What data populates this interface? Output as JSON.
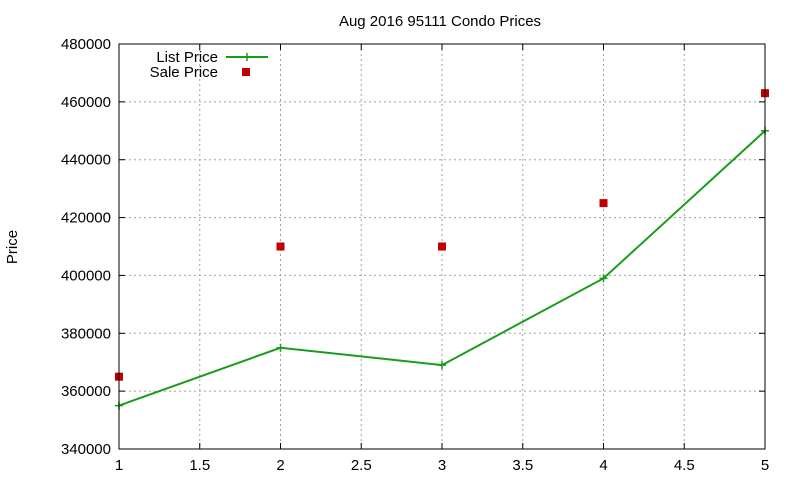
{
  "chart_data": {
    "type": "line",
    "title": "Aug 2016 95111 Condo Prices",
    "xlabel": "",
    "ylabel": "Price",
    "xlim": [
      1,
      5
    ],
    "ylim": [
      340000,
      480000
    ],
    "xticks": [
      "1",
      "1.5",
      "2",
      "2.5",
      "3",
      "3.5",
      "4",
      "4.5",
      "5"
    ],
    "yticks": [
      "340000",
      "360000",
      "380000",
      "400000",
      "420000",
      "440000",
      "460000",
      "480000"
    ],
    "grid": true,
    "legend_position": "top-left",
    "series": [
      {
        "name": "List Price",
        "style": "line-plus",
        "color": "#1a9c1a",
        "x": [
          1,
          2,
          3,
          4,
          5
        ],
        "y": [
          355000,
          375000,
          369000,
          399000,
          450000
        ]
      },
      {
        "name": "Sale Price",
        "style": "square-markers",
        "color": "#c00000",
        "x": [
          1,
          2,
          3,
          4,
          5
        ],
        "y": [
          365000,
          410000,
          410000,
          425000,
          463000
        ]
      }
    ]
  }
}
